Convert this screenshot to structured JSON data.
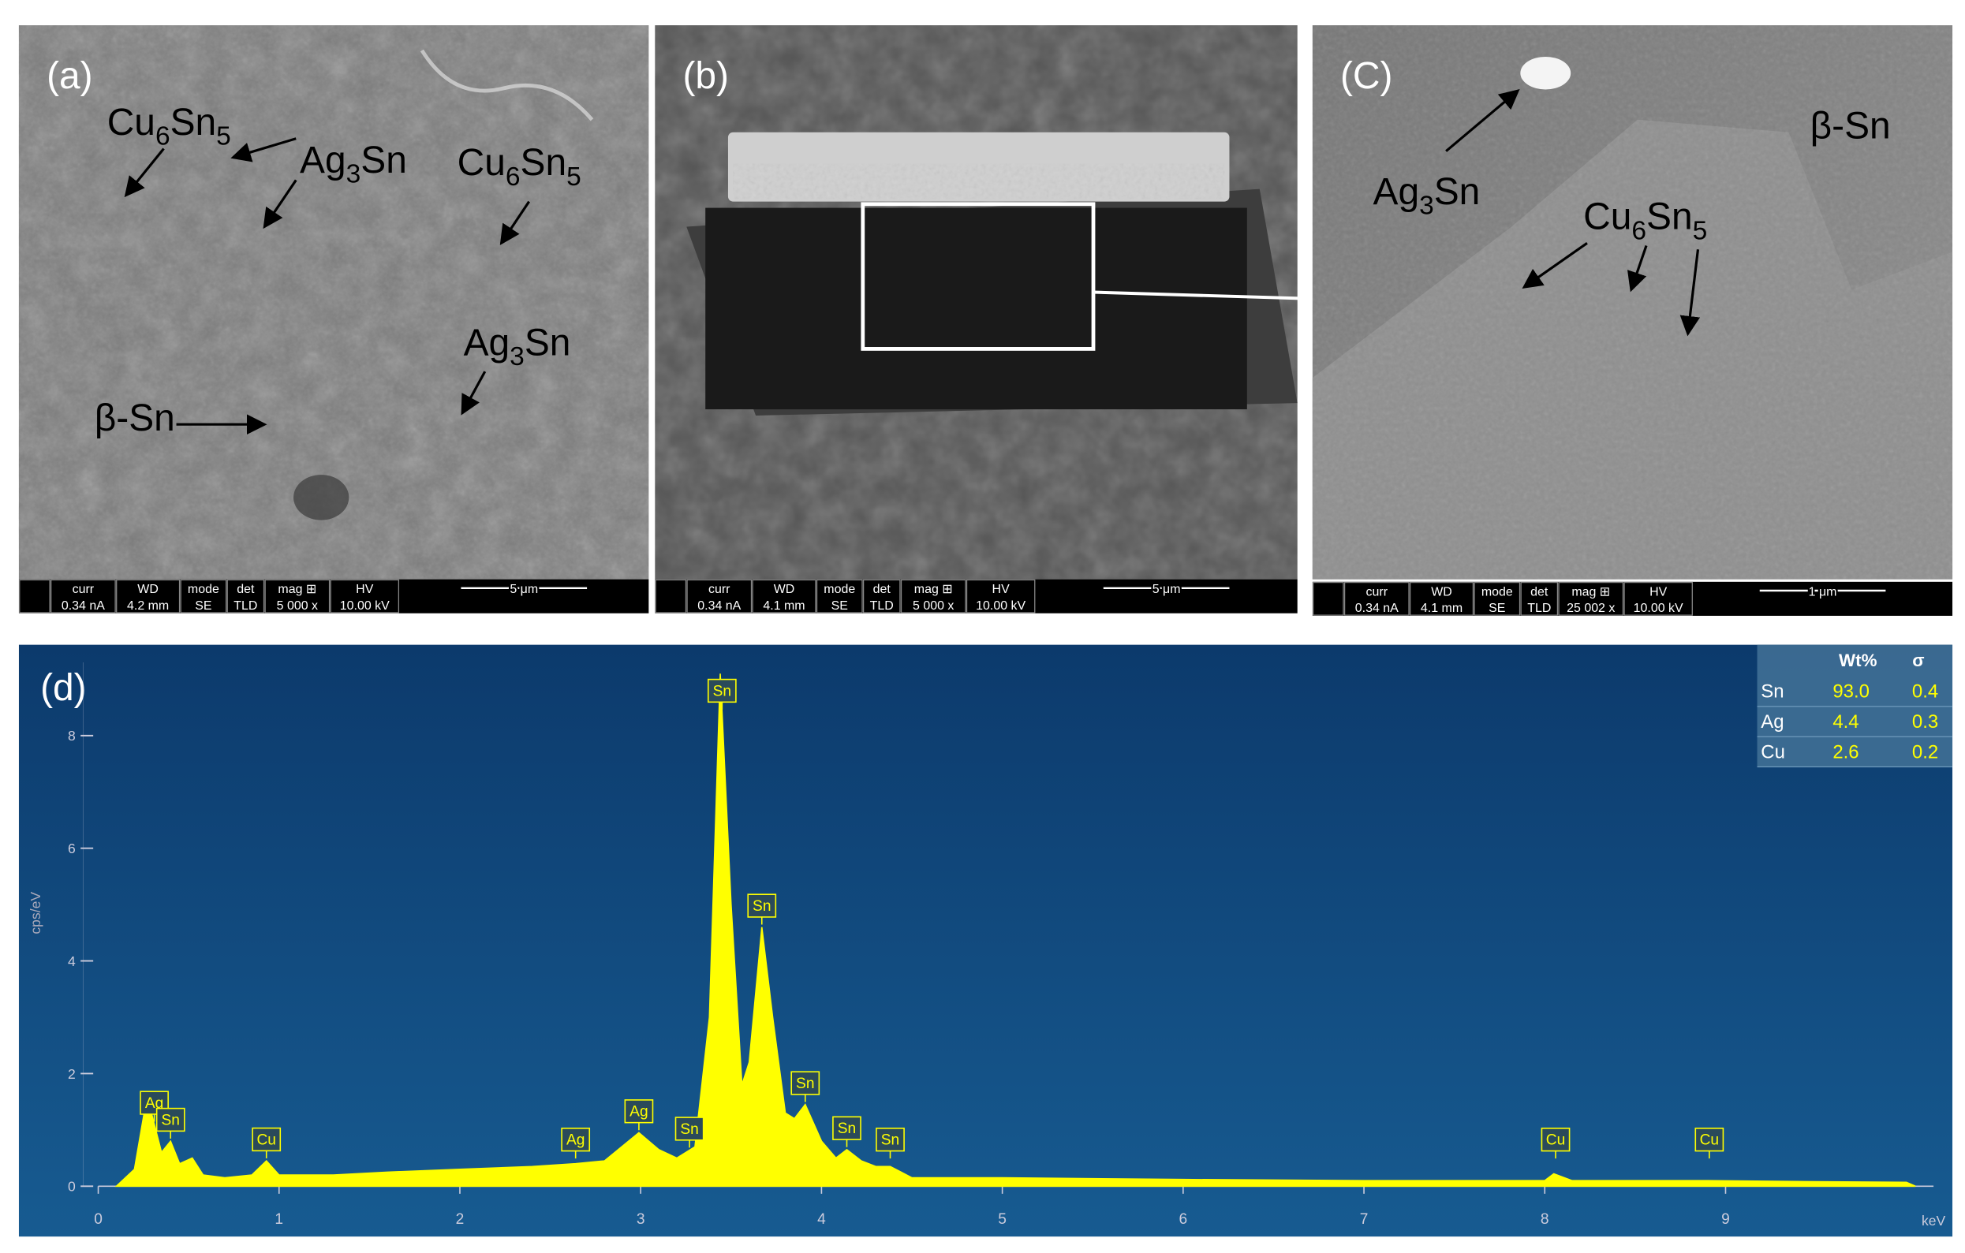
{
  "panels": [
    {
      "label": "(a)",
      "info": {
        "headers": [
          "curr",
          "WD",
          "mode",
          "det",
          "mag ⊞",
          "HV"
        ],
        "values": [
          "0.34 nA",
          "4.2 mm",
          "SE",
          "TLD",
          "5 000 x",
          "10.00 kV"
        ],
        "scale": "5 μm"
      },
      "annotations": [
        [
          "Cu",
          "6",
          "Sn",
          "5"
        ],
        [
          "Ag",
          "3",
          "Sn"
        ],
        [
          "Cu",
          "6",
          "Sn",
          "5"
        ],
        [
          "Ag",
          "3",
          "Sn"
        ],
        [
          "β-Sn"
        ]
      ]
    },
    {
      "label": "(b)",
      "info": {
        "headers": [
          "curr",
          "WD",
          "mode",
          "det",
          "mag ⊞",
          "HV"
        ],
        "values": [
          "0.34 nA",
          "4.1 mm",
          "SE",
          "TLD",
          "5 000 x",
          "10.00 kV"
        ],
        "scale": "5 μm"
      },
      "annotations": []
    },
    {
      "label": "(C)",
      "info": {
        "headers": [
          "curr",
          "WD",
          "mode",
          "det",
          "mag ⊞",
          "HV"
        ],
        "values": [
          "0.34 nA",
          "4.1 mm",
          "SE",
          "TLD",
          "25 002 x",
          "10.00 kV"
        ],
        "scale": "1 μm"
      },
      "annotations": [
        [
          "Ag",
          "3",
          "Sn"
        ],
        [
          "β-Sn"
        ],
        [
          "Cu",
          "6",
          "Sn",
          "5"
        ]
      ]
    }
  ],
  "chart_data": {
    "type": "area",
    "title": "(d)",
    "ylabel": "cps/eV",
    "xlabel": "keV",
    "color": "#ffff00",
    "x": [
      0.1,
      0.2,
      0.27,
      0.31,
      0.35,
      0.4,
      0.45,
      0.52,
      0.58,
      0.7,
      0.85,
      0.93,
      1.0,
      1.3,
      1.6,
      2.0,
      2.4,
      2.64,
      2.8,
      2.99,
      3.1,
      3.2,
      3.3,
      3.38,
      3.44,
      3.5,
      3.56,
      3.6,
      3.67,
      3.73,
      3.8,
      3.85,
      3.91,
      4.0,
      4.08,
      4.14,
      4.22,
      4.3,
      4.38,
      4.5,
      5,
      6,
      7,
      8,
      8.05,
      8.15,
      8.9,
      9.5,
      10,
      10.05
    ],
    "values": [
      0,
      0.3,
      1.6,
      1.1,
      0.6,
      0.8,
      0.4,
      0.5,
      0.2,
      0.15,
      0.2,
      0.45,
      0.2,
      0.2,
      0.25,
      0.3,
      0.35,
      0.4,
      0.45,
      0.95,
      0.65,
      0.5,
      0.7,
      3,
      9.1,
      5,
      1.8,
      2.2,
      4.6,
      3,
      1.3,
      1.2,
      1.45,
      0.8,
      0.5,
      0.65,
      0.45,
      0.35,
      0.35,
      0.15,
      0.15,
      0.12,
      0.1,
      0.1,
      0.22,
      0.1,
      0.1,
      0.08,
      0.07,
      0
    ],
    "xlim": [
      0,
      10.15
    ],
    "ylim": [
      0,
      9.3
    ],
    "xticks": [
      0,
      1,
      2,
      3,
      4,
      5,
      6,
      7,
      8,
      9
    ],
    "yticks": [
      0,
      2,
      4,
      6,
      8
    ],
    "peaks": [
      {
        "label": "Ag",
        "x": 0.31
      },
      {
        "label": "Sn",
        "x": 0.4
      },
      {
        "label": "Cu",
        "x": 0.93
      },
      {
        "label": "Ag",
        "x": 2.64
      },
      {
        "label": "Ag",
        "x": 2.99
      },
      {
        "label": "Sn",
        "x": 3.27
      },
      {
        "label": "Sn",
        "x": 3.45
      },
      {
        "label": "Sn",
        "x": 3.67
      },
      {
        "label": "Sn",
        "x": 3.91
      },
      {
        "label": "Sn",
        "x": 4.14
      },
      {
        "label": "Sn",
        "x": 4.38
      },
      {
        "label": "Cu",
        "x": 8.06
      },
      {
        "label": "Cu",
        "x": 8.91
      }
    ]
  },
  "composition_table": {
    "columns": [
      "Wt%",
      "σ"
    ],
    "rows": [
      [
        "Sn",
        "93.0",
        "0.4"
      ],
      [
        "Ag",
        "4.4",
        "0.3"
      ],
      [
        "Cu",
        "2.6",
        "0.2"
      ]
    ]
  }
}
